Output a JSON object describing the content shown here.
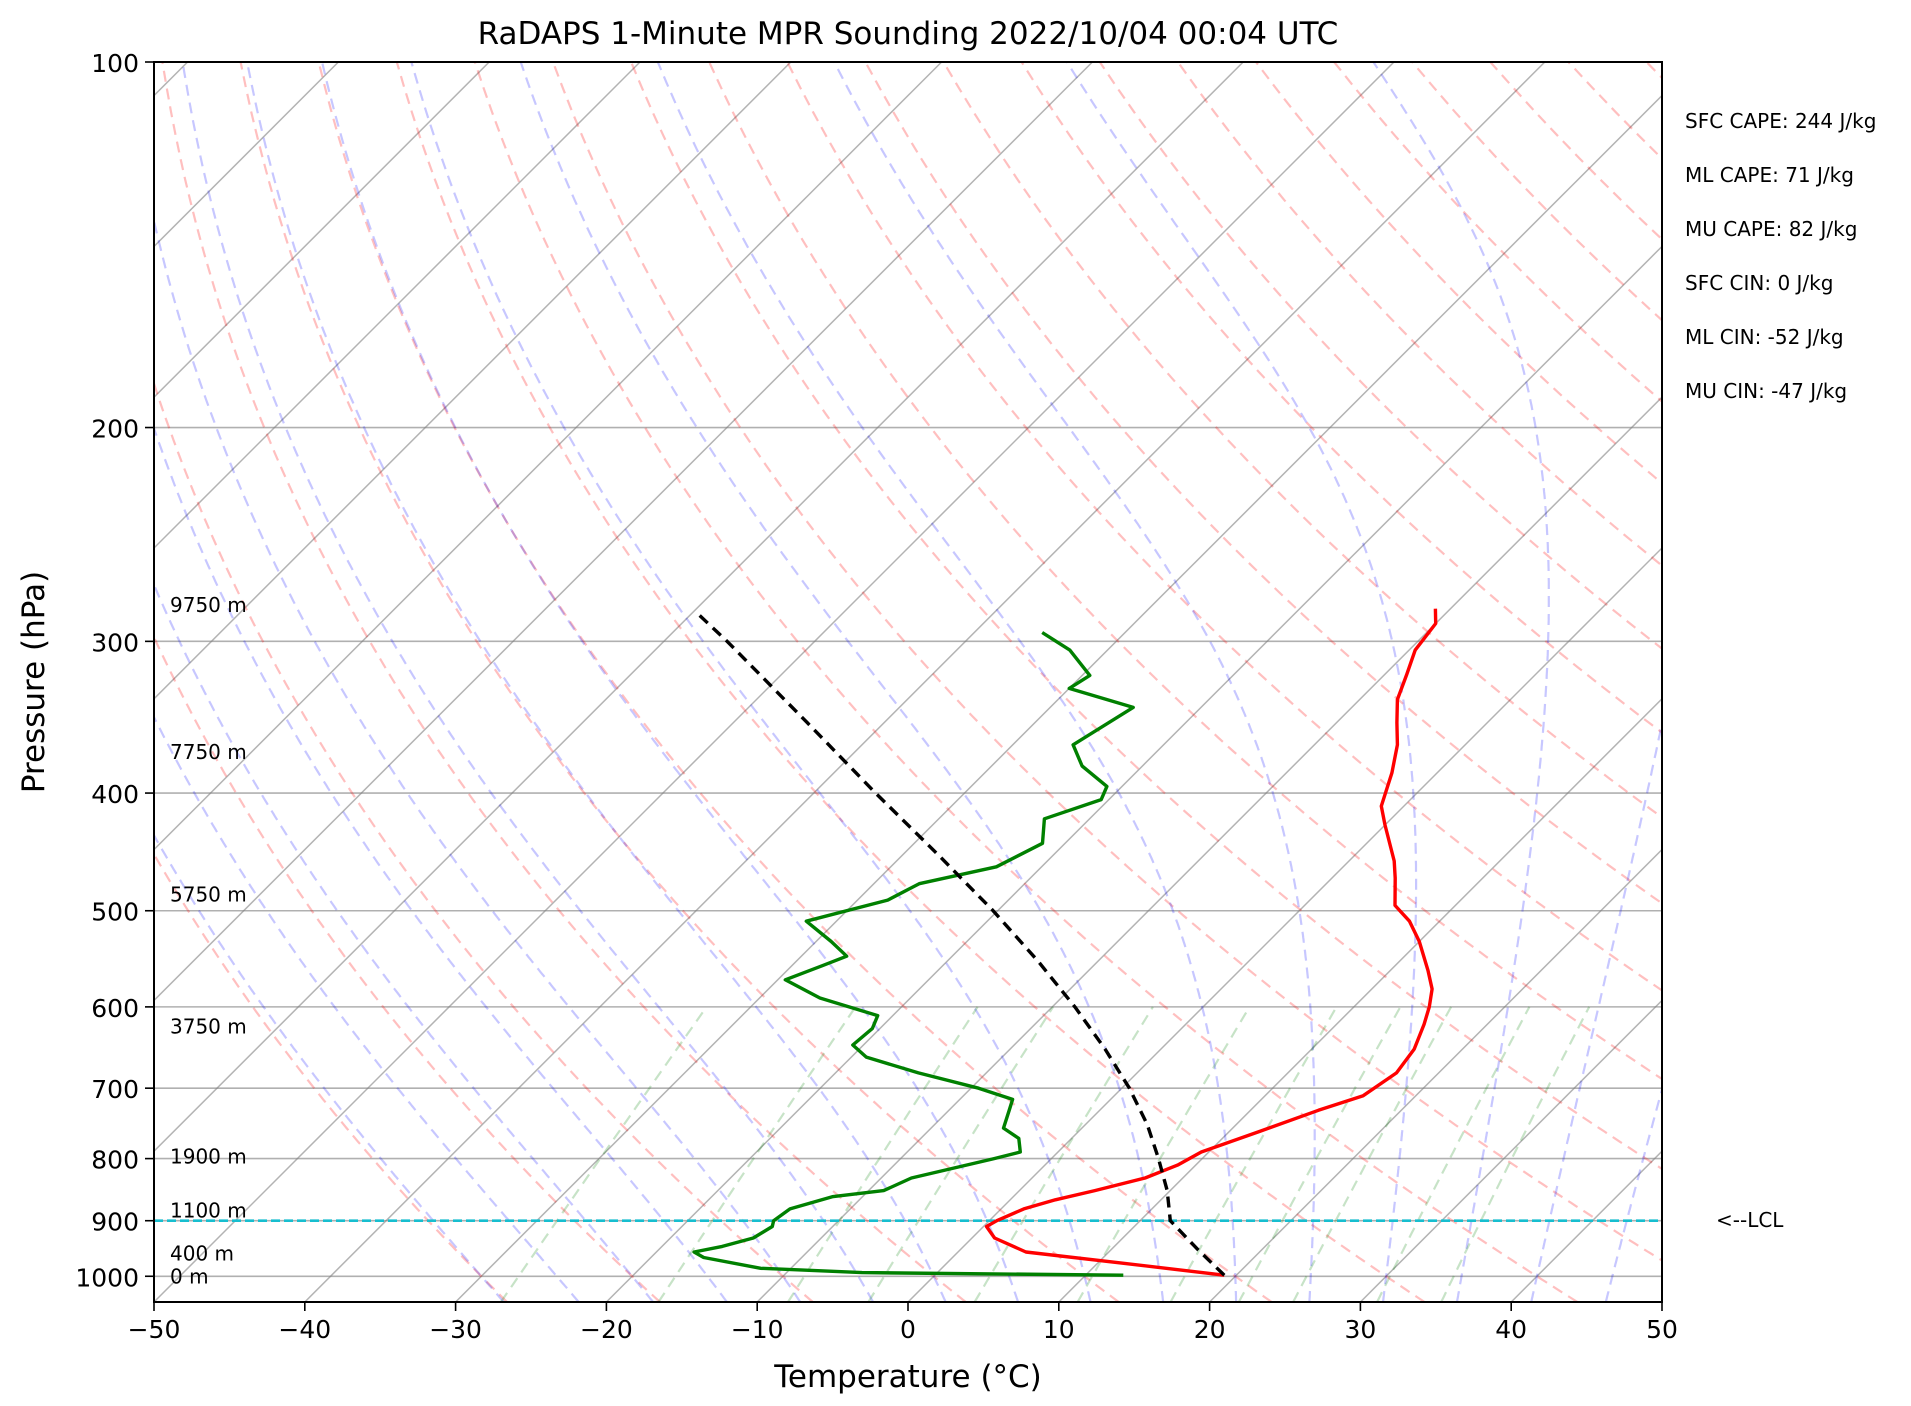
{
  "chart_data": {
    "type": "line",
    "title": "RaDAPS 1-Minute MPR Sounding 2022/10/04 00:04 UTC",
    "xlabel": "Temperature (°C)",
    "ylabel": "Pressure (hPa)",
    "xlim": [
      -50,
      50
    ],
    "ylim": [
      1050,
      100
    ],
    "y_scale": "log",
    "skew_t": true,
    "grid": true,
    "x_ticks": [
      "−50",
      "−40",
      "−30",
      "−20",
      "−10",
      "0",
      "10",
      "20",
      "30",
      "40",
      "50"
    ],
    "x_tick_values": [
      -50,
      -40,
      -30,
      -20,
      -10,
      0,
      10,
      20,
      30,
      40,
      50
    ],
    "y_ticks": [
      "100",
      "200",
      "300",
      "400",
      "500",
      "600",
      "700",
      "800",
      "900",
      "1000"
    ],
    "y_tick_values": [
      100,
      200,
      300,
      400,
      500,
      600,
      700,
      800,
      900,
      1000
    ],
    "series": [
      {
        "id": "temperature",
        "color": "#ff0000",
        "style": "solid",
        "points": [
          [
            998,
            19.2
          ],
          [
            975,
            11.5
          ],
          [
            955,
            4.5
          ],
          [
            930,
            1.5
          ],
          [
            910,
            0.2
          ],
          [
            900,
            0.5
          ],
          [
            880,
            1.5
          ],
          [
            865,
            3.0
          ],
          [
            850,
            5.0
          ],
          [
            830,
            7.5
          ],
          [
            810,
            8.8
          ],
          [
            790,
            9.5
          ],
          [
            760,
            12.0
          ],
          [
            730,
            14.5
          ],
          [
            710,
            16.5
          ],
          [
            680,
            17.2
          ],
          [
            650,
            16.8
          ],
          [
            620,
            15.8
          ],
          [
            600,
            15.0
          ],
          [
            580,
            14.0
          ],
          [
            560,
            12.5
          ],
          [
            530,
            10.0
          ],
          [
            510,
            8.0
          ],
          [
            495,
            6.0
          ],
          [
            470,
            4.2
          ],
          [
            455,
            3.0
          ],
          [
            425,
            0.0
          ],
          [
            410,
            -1.5
          ],
          [
            385,
            -3.0
          ],
          [
            365,
            -4.5
          ],
          [
            350,
            -6.0
          ],
          [
            335,
            -7.5
          ],
          [
            320,
            -8.5
          ],
          [
            305,
            -9.6
          ],
          [
            290,
            -10.0
          ],
          [
            282,
            -11.0
          ]
        ]
      },
      {
        "id": "dewpoint",
        "color": "#008000",
        "style": "solid",
        "points": [
          [
            998,
            12.5
          ],
          [
            993,
            -5.0
          ],
          [
            985,
            -12.0
          ],
          [
            965,
            -16.5
          ],
          [
            955,
            -17.5
          ],
          [
            945,
            -16.0
          ],
          [
            930,
            -14.5
          ],
          [
            910,
            -14.0
          ],
          [
            900,
            -14.3
          ],
          [
            880,
            -14.0
          ],
          [
            860,
            -12.0
          ],
          [
            850,
            -9.0
          ],
          [
            830,
            -8.0
          ],
          [
            800,
            -3.8
          ],
          [
            790,
            -2.5
          ],
          [
            770,
            -3.5
          ],
          [
            755,
            -5.2
          ],
          [
            730,
            -6.0
          ],
          [
            715,
            -6.5
          ],
          [
            700,
            -9.5
          ],
          [
            680,
            -14.5
          ],
          [
            660,
            -19.0
          ],
          [
            645,
            -20.7
          ],
          [
            625,
            -20.5
          ],
          [
            610,
            -21.0
          ],
          [
            590,
            -26.0
          ],
          [
            570,
            -29.5
          ],
          [
            555,
            -28.0
          ],
          [
            545,
            -27.0
          ],
          [
            530,
            -29.0
          ],
          [
            510,
            -32.0
          ],
          [
            490,
            -28.0
          ],
          [
            475,
            -27.0
          ],
          [
            460,
            -23.0
          ],
          [
            440,
            -21.5
          ],
          [
            420,
            -23.0
          ],
          [
            405,
            -20.5
          ],
          [
            395,
            -21.0
          ],
          [
            380,
            -24.0
          ],
          [
            365,
            -26.0
          ],
          [
            340,
            -24.5
          ],
          [
            328,
            -30.0
          ],
          [
            320,
            -29.5
          ],
          [
            305,
            -32.5
          ],
          [
            295,
            -35.5
          ]
        ]
      },
      {
        "id": "parcel",
        "color": "#000000",
        "style": "dashed",
        "points": [
          [
            998,
            19.2
          ],
          [
            950,
            15.7
          ],
          [
            900,
            12.0
          ],
          [
            850,
            9.8
          ],
          [
            800,
            7.1
          ],
          [
            750,
            4.1
          ],
          [
            700,
            0.5
          ],
          [
            650,
            -3.7
          ],
          [
            600,
            -8.5
          ],
          [
            550,
            -14.0
          ],
          [
            500,
            -20.3
          ],
          [
            450,
            -27.6
          ],
          [
            400,
            -35.9
          ],
          [
            350,
            -45.1
          ],
          [
            300,
            -55.8
          ],
          [
            285,
            -59.5
          ]
        ]
      }
    ],
    "lcl": {
      "pressure": 900,
      "label": "<--LCL",
      "color": "#17becf"
    },
    "height_labels": [
      {
        "text": "9750 m",
        "pressure": 280
      },
      {
        "text": "7750 m",
        "pressure": 370
      },
      {
        "text": "5750 m",
        "pressure": 485
      },
      {
        "text": "3750 m",
        "pressure": 623
      },
      {
        "text": "1900 m",
        "pressure": 797
      },
      {
        "text": "1100 m",
        "pressure": 883
      },
      {
        "text": "400 m",
        "pressure": 958
      },
      {
        "text": "0 m",
        "pressure": 1000
      }
    ],
    "background_lines": {
      "dry_adiabats": {
        "color": "#ff0000",
        "style": "dashed"
      },
      "moist_adiabats": {
        "color": "#0000ff",
        "style": "dashed"
      },
      "mixing_ratio": {
        "color": "#008000",
        "style": "dashed"
      },
      "isotherms": {
        "color": "#808080",
        "style": "solid"
      }
    },
    "annotations": [
      "SFC CAPE: 244 J/kg",
      "ML CAPE: 71 J/kg",
      "MU CAPE: 82 J/kg",
      "SFC CIN: 0 J/kg",
      "ML CIN: -52 J/kg",
      "MU CIN: -47 J/kg"
    ]
  }
}
